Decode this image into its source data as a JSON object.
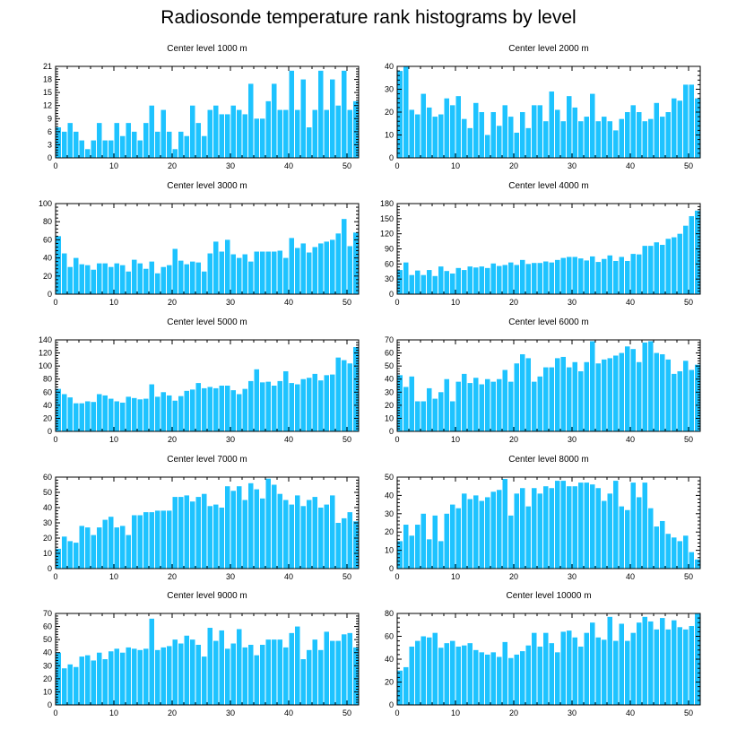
{
  "title": "Radiosonde temperature rank histograms by level",
  "colors": {
    "bar": "#1ec3ff",
    "axis": "#000000"
  },
  "chart_data": [
    {
      "type": "bar",
      "title": "Center level 1000 m",
      "x": [
        0,
        1,
        2,
        3,
        4,
        5,
        6,
        7,
        8,
        9,
        10,
        11,
        12,
        13,
        14,
        15,
        16,
        17,
        18,
        19,
        20,
        21,
        22,
        23,
        24,
        25,
        26,
        27,
        28,
        29,
        30,
        31,
        32,
        33,
        34,
        35,
        36,
        37,
        38,
        39,
        40,
        41,
        42,
        43,
        44,
        45,
        46,
        47,
        48,
        49,
        50,
        51
      ],
      "values": [
        7,
        6,
        8,
        6,
        4,
        2,
        4,
        8,
        4,
        4,
        8,
        5,
        8,
        6,
        4,
        8,
        12,
        6,
        11,
        6,
        2,
        6,
        5,
        12,
        8,
        5,
        11,
        12,
        10,
        10,
        12,
        11,
        10,
        17,
        9,
        9,
        13,
        17,
        11,
        11,
        20,
        11,
        18,
        7,
        11,
        20,
        11,
        18,
        12,
        20,
        11,
        13
      ],
      "xlim": [
        0,
        52
      ],
      "xticks": [
        0,
        10,
        20,
        30,
        40,
        50
      ],
      "ylim": [
        0,
        21
      ],
      "yticks": [
        0,
        3,
        6,
        9,
        12,
        15,
        18,
        21
      ],
      "ytick_side": "left"
    },
    {
      "type": "bar",
      "title": "Center level 2000 m",
      "x": [
        0,
        1,
        2,
        3,
        4,
        5,
        6,
        7,
        8,
        9,
        10,
        11,
        12,
        13,
        14,
        15,
        16,
        17,
        18,
        19,
        20,
        21,
        22,
        23,
        24,
        25,
        26,
        27,
        28,
        29,
        30,
        31,
        32,
        33,
        34,
        35,
        36,
        37,
        38,
        39,
        40,
        41,
        42,
        43,
        44,
        45,
        46,
        47,
        48,
        49,
        50,
        51
      ],
      "values": [
        38,
        40,
        21,
        19,
        28,
        22,
        18,
        19,
        26,
        23,
        27,
        17,
        13,
        24,
        20,
        10,
        20,
        14,
        23,
        18,
        11,
        20,
        13,
        23,
        23,
        16,
        29,
        21,
        16,
        27,
        22,
        16,
        18,
        28,
        16,
        18,
        16,
        12,
        17,
        20,
        23,
        20,
        16,
        17,
        24,
        18,
        20,
        26,
        25,
        32,
        32,
        26
      ],
      "xlim": [
        0,
        52
      ],
      "xticks": [
        0,
        10,
        20,
        30,
        40,
        50
      ],
      "ylim": [
        0,
        40
      ],
      "yticks": [
        0,
        10,
        20,
        30,
        40
      ],
      "ytick_side": "right"
    },
    {
      "type": "bar",
      "title": "Center level 3000 m",
      "x": [
        0,
        1,
        2,
        3,
        4,
        5,
        6,
        7,
        8,
        9,
        10,
        11,
        12,
        13,
        14,
        15,
        16,
        17,
        18,
        19,
        20,
        21,
        22,
        23,
        24,
        25,
        26,
        27,
        28,
        29,
        30,
        31,
        32,
        33,
        34,
        35,
        36,
        37,
        38,
        39,
        40,
        41,
        42,
        43,
        44,
        45,
        46,
        47,
        48,
        49,
        50,
        51
      ],
      "values": [
        64,
        45,
        30,
        40,
        33,
        32,
        27,
        34,
        34,
        30,
        34,
        32,
        25,
        38,
        34,
        28,
        36,
        23,
        30,
        32,
        50,
        37,
        33,
        36,
        35,
        25,
        45,
        58,
        47,
        60,
        44,
        40,
        44,
        36,
        47,
        47,
        47,
        47,
        48,
        40,
        62,
        51,
        56,
        46,
        52,
        56,
        58,
        60,
        67,
        83,
        53,
        68
      ],
      "xlim": [
        0,
        52
      ],
      "xticks": [
        0,
        10,
        20,
        30,
        40,
        50
      ],
      "ylim": [
        0,
        100
      ],
      "yticks": [
        0,
        20,
        40,
        60,
        80,
        100
      ],
      "ytick_side": "left"
    },
    {
      "type": "bar",
      "title": "Center level 4000 m",
      "x": [
        0,
        1,
        2,
        3,
        4,
        5,
        6,
        7,
        8,
        9,
        10,
        11,
        12,
        13,
        14,
        15,
        16,
        17,
        18,
        19,
        20,
        21,
        22,
        23,
        24,
        25,
        26,
        27,
        28,
        29,
        30,
        31,
        32,
        33,
        34,
        35,
        36,
        37,
        38,
        39,
        40,
        41,
        42,
        43,
        44,
        45,
        46,
        47,
        48,
        49,
        50,
        51
      ],
      "values": [
        48,
        63,
        38,
        47,
        38,
        48,
        36,
        55,
        46,
        41,
        52,
        48,
        55,
        53,
        55,
        52,
        61,
        56,
        58,
        63,
        58,
        68,
        60,
        62,
        62,
        65,
        63,
        68,
        72,
        74,
        74,
        71,
        67,
        75,
        64,
        70,
        77,
        66,
        74,
        66,
        80,
        79,
        96,
        96,
        103,
        98,
        110,
        113,
        120,
        136,
        155,
        166
      ],
      "xlim": [
        0,
        52
      ],
      "xticks": [
        0,
        10,
        20,
        30,
        40,
        50
      ],
      "ylim": [
        0,
        180
      ],
      "yticks": [
        0,
        30,
        60,
        90,
        120,
        150,
        180
      ],
      "ytick_side": "right"
    },
    {
      "type": "bar",
      "title": "Center level 5000 m",
      "x": [
        0,
        1,
        2,
        3,
        4,
        5,
        6,
        7,
        8,
        9,
        10,
        11,
        12,
        13,
        14,
        15,
        16,
        17,
        18,
        19,
        20,
        21,
        22,
        23,
        24,
        25,
        26,
        27,
        28,
        29,
        30,
        31,
        32,
        33,
        34,
        35,
        36,
        37,
        38,
        39,
        40,
        41,
        42,
        43,
        44,
        45,
        46,
        47,
        48,
        49,
        50,
        51
      ],
      "values": [
        65,
        57,
        52,
        43,
        43,
        46,
        45,
        57,
        55,
        50,
        46,
        44,
        53,
        51,
        49,
        50,
        72,
        53,
        60,
        55,
        47,
        54,
        62,
        64,
        74,
        66,
        68,
        66,
        70,
        70,
        63,
        57,
        65,
        77,
        95,
        75,
        76,
        70,
        77,
        92,
        74,
        72,
        80,
        82,
        88,
        78,
        86,
        87,
        113,
        109,
        104,
        129
      ],
      "xlim": [
        0,
        52
      ],
      "xticks": [
        0,
        10,
        20,
        30,
        40,
        50
      ],
      "ylim": [
        0,
        140
      ],
      "yticks": [
        0,
        20,
        40,
        60,
        80,
        100,
        120,
        140
      ],
      "ytick_side": "left"
    },
    {
      "type": "bar",
      "title": "Center level 6000 m",
      "x": [
        0,
        1,
        2,
        3,
        4,
        5,
        6,
        7,
        8,
        9,
        10,
        11,
        12,
        13,
        14,
        15,
        16,
        17,
        18,
        19,
        20,
        21,
        22,
        23,
        24,
        25,
        26,
        27,
        28,
        29,
        30,
        31,
        32,
        33,
        34,
        35,
        36,
        37,
        38,
        39,
        40,
        41,
        42,
        43,
        44,
        45,
        46,
        47,
        48,
        49,
        50,
        51
      ],
      "values": [
        43,
        34,
        42,
        23,
        23,
        33,
        25,
        30,
        40,
        23,
        38,
        44,
        37,
        41,
        36,
        40,
        38,
        40,
        47,
        38,
        52,
        59,
        56,
        38,
        42,
        49,
        49,
        56,
        57,
        49,
        53,
        46,
        53,
        69,
        52,
        55,
        56,
        58,
        60,
        65,
        63,
        53,
        68,
        69,
        60,
        59,
        55,
        44,
        46,
        54,
        47,
        51
      ],
      "xlim": [
        0,
        52
      ],
      "xticks": [
        0,
        10,
        20,
        30,
        40,
        50
      ],
      "ylim": [
        0,
        70
      ],
      "yticks": [
        0,
        10,
        20,
        30,
        40,
        50,
        60,
        70
      ],
      "ytick_side": "right"
    },
    {
      "type": "bar",
      "title": "Center level 7000 m",
      "x": [
        0,
        1,
        2,
        3,
        4,
        5,
        6,
        7,
        8,
        9,
        10,
        11,
        12,
        13,
        14,
        15,
        16,
        17,
        18,
        19,
        20,
        21,
        22,
        23,
        24,
        25,
        26,
        27,
        28,
        29,
        30,
        31,
        32,
        33,
        34,
        35,
        36,
        37,
        38,
        39,
        40,
        41,
        42,
        43,
        44,
        45,
        46,
        47,
        48,
        49,
        50,
        51
      ],
      "values": [
        13,
        21,
        18,
        17,
        28,
        27,
        22,
        27,
        32,
        34,
        27,
        28,
        22,
        35,
        35,
        37,
        37,
        38,
        38,
        38,
        47,
        47,
        48,
        44,
        47,
        49,
        41,
        42,
        40,
        54,
        51,
        54,
        45,
        56,
        52,
        46,
        59,
        55,
        49,
        45,
        42,
        48,
        41,
        45,
        47,
        40,
        42,
        48,
        30,
        33,
        37,
        31
      ],
      "xlim": [
        0,
        52
      ],
      "xticks": [
        0,
        10,
        20,
        30,
        40,
        50
      ],
      "ylim": [
        0,
        60
      ],
      "yticks": [
        0,
        10,
        20,
        30,
        40,
        50,
        60
      ],
      "ytick_side": "left"
    },
    {
      "type": "bar",
      "title": "Center level 8000 m",
      "x": [
        0,
        1,
        2,
        3,
        4,
        5,
        6,
        7,
        8,
        9,
        10,
        11,
        12,
        13,
        14,
        15,
        16,
        17,
        18,
        19,
        20,
        21,
        22,
        23,
        24,
        25,
        26,
        27,
        28,
        29,
        30,
        31,
        32,
        33,
        34,
        35,
        36,
        37,
        38,
        39,
        40,
        41,
        42,
        43,
        44,
        45,
        46,
        47,
        48,
        49,
        50,
        51
      ],
      "values": [
        15,
        24,
        18,
        24,
        30,
        16,
        29,
        15,
        30,
        35,
        33,
        41,
        38,
        40,
        37,
        39,
        42,
        43,
        49,
        29,
        41,
        44,
        34,
        44,
        41,
        45,
        44,
        48,
        48,
        45,
        45,
        47,
        47,
        46,
        44,
        37,
        41,
        48,
        34,
        32,
        47,
        39,
        47,
        33,
        23,
        26,
        19,
        17,
        15,
        18,
        9,
        5
      ],
      "xlim": [
        0,
        52
      ],
      "xticks": [
        0,
        10,
        20,
        30,
        40,
        50
      ],
      "ylim": [
        0,
        50
      ],
      "yticks": [
        0,
        10,
        20,
        30,
        40,
        50
      ],
      "ytick_side": "right"
    },
    {
      "type": "bar",
      "title": "Center level 9000 m",
      "x": [
        0,
        1,
        2,
        3,
        4,
        5,
        6,
        7,
        8,
        9,
        10,
        11,
        12,
        13,
        14,
        15,
        16,
        17,
        18,
        19,
        20,
        21,
        22,
        23,
        24,
        25,
        26,
        27,
        28,
        29,
        30,
        31,
        32,
        33,
        34,
        35,
        36,
        37,
        38,
        39,
        40,
        41,
        42,
        43,
        44,
        45,
        46,
        47,
        48,
        49,
        50,
        51
      ],
      "values": [
        40,
        28,
        31,
        29,
        37,
        38,
        34,
        40,
        35,
        41,
        43,
        40,
        44,
        43,
        42,
        43,
        66,
        42,
        44,
        45,
        50,
        47,
        53,
        50,
        46,
        37,
        59,
        49,
        57,
        43,
        47,
        58,
        44,
        46,
        38,
        46,
        50,
        50,
        50,
        44,
        55,
        60,
        35,
        42,
        50,
        42,
        56,
        49,
        49,
        54,
        55,
        44
      ],
      "xlim": [
        0,
        52
      ],
      "xticks": [
        0,
        10,
        20,
        30,
        40,
        50
      ],
      "ylim": [
        0,
        70
      ],
      "yticks": [
        0,
        10,
        20,
        30,
        40,
        50,
        60,
        70
      ],
      "ytick_side": "left"
    },
    {
      "type": "bar",
      "title": "Center level 10000 m",
      "x": [
        0,
        1,
        2,
        3,
        4,
        5,
        6,
        7,
        8,
        9,
        10,
        11,
        12,
        13,
        14,
        15,
        16,
        17,
        18,
        19,
        20,
        21,
        22,
        23,
        24,
        25,
        26,
        27,
        28,
        29,
        30,
        31,
        32,
        33,
        34,
        35,
        36,
        37,
        38,
        39,
        40,
        41,
        42,
        43,
        44,
        45,
        46,
        47,
        48,
        49,
        50,
        51
      ],
      "values": [
        30,
        33,
        51,
        56,
        60,
        59,
        63,
        50,
        54,
        56,
        51,
        52,
        54,
        48,
        46,
        44,
        46,
        42,
        55,
        41,
        44,
        47,
        52,
        63,
        51,
        63,
        54,
        46,
        64,
        65,
        59,
        51,
        63,
        72,
        59,
        57,
        77,
        56,
        71,
        56,
        63,
        72,
        77,
        73,
        66,
        76,
        66,
        74,
        68,
        66,
        69,
        80
      ],
      "xlim": [
        0,
        52
      ],
      "xticks": [
        0,
        10,
        20,
        30,
        40,
        50
      ],
      "ylim": [
        0,
        80
      ],
      "yticks": [
        0,
        20,
        40,
        60,
        80
      ],
      "ytick_side": "right"
    }
  ]
}
